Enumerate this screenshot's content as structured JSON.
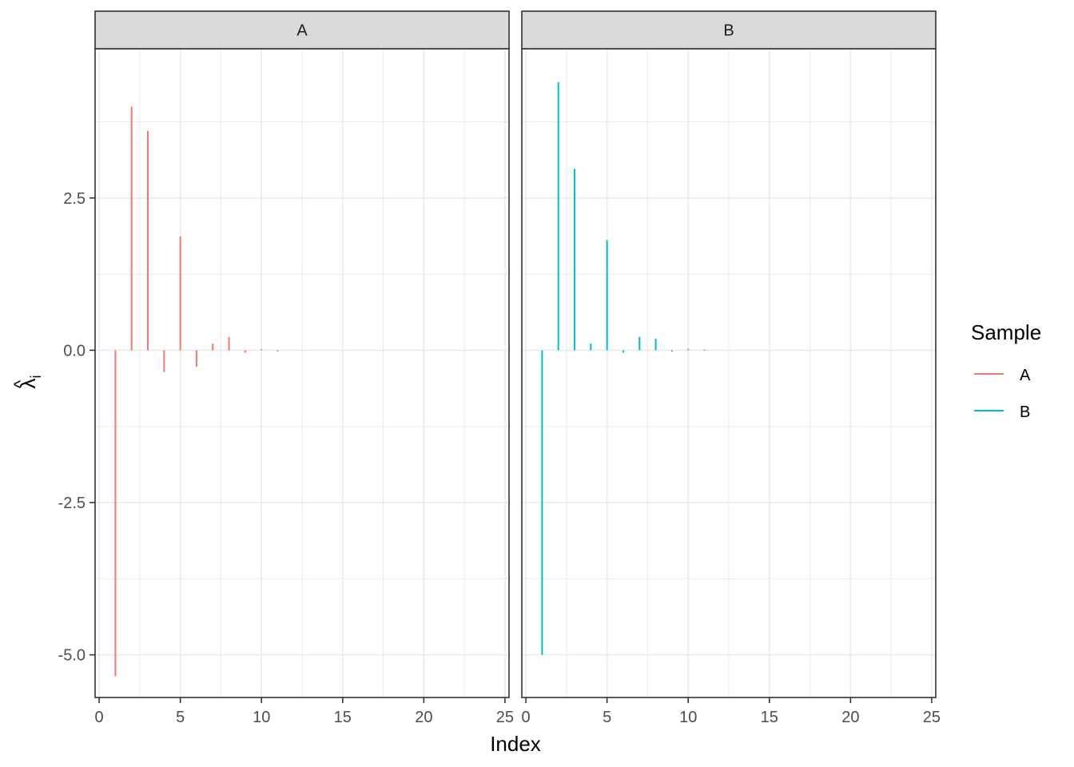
{
  "chart_data": {
    "type": "bar",
    "xlabel": "Index",
    "ylabel": "λ̂i",
    "ylabel_base": "λ",
    "ylabel_subscript": "i",
    "x_ticks": [
      0,
      5,
      10,
      15,
      20,
      25
    ],
    "x_tick_labels": [
      "0",
      "5",
      "10",
      "15",
      "20",
      "25"
    ],
    "y_ticks": [
      2.5,
      0.0,
      -2.5,
      -5.0
    ],
    "y_tick_labels": [
      "2.5",
      "0.0",
      "-2.5",
      "-5.0"
    ],
    "xlim": [
      -0.25,
      25.25
    ],
    "ylim": [
      -5.7,
      4.95
    ],
    "grid": true,
    "legend": {
      "title": "Sample",
      "position": "right"
    },
    "panels": [
      {
        "strip": "A",
        "series": "A",
        "color": "#F8766D",
        "x": [
          1,
          2,
          3,
          4,
          5,
          6,
          7,
          8,
          9,
          10,
          11
        ],
        "values": [
          -5.35,
          4.0,
          3.6,
          -0.36,
          1.87,
          -0.27,
          0.11,
          0.22,
          -0.04,
          0.02,
          -0.02
        ]
      },
      {
        "strip": "B",
        "series": "B",
        "color": "#00BFC4",
        "x": [
          1,
          2,
          3,
          4,
          5,
          6,
          7,
          8,
          9,
          10,
          11
        ],
        "values": [
          -5.0,
          4.4,
          2.98,
          0.11,
          1.81,
          -0.04,
          0.22,
          0.19,
          -0.02,
          0.02,
          0.01
        ]
      }
    ],
    "series": [
      {
        "name": "A",
        "color": "#F8766D"
      },
      {
        "name": "B",
        "color": "#00BFC4"
      }
    ]
  }
}
